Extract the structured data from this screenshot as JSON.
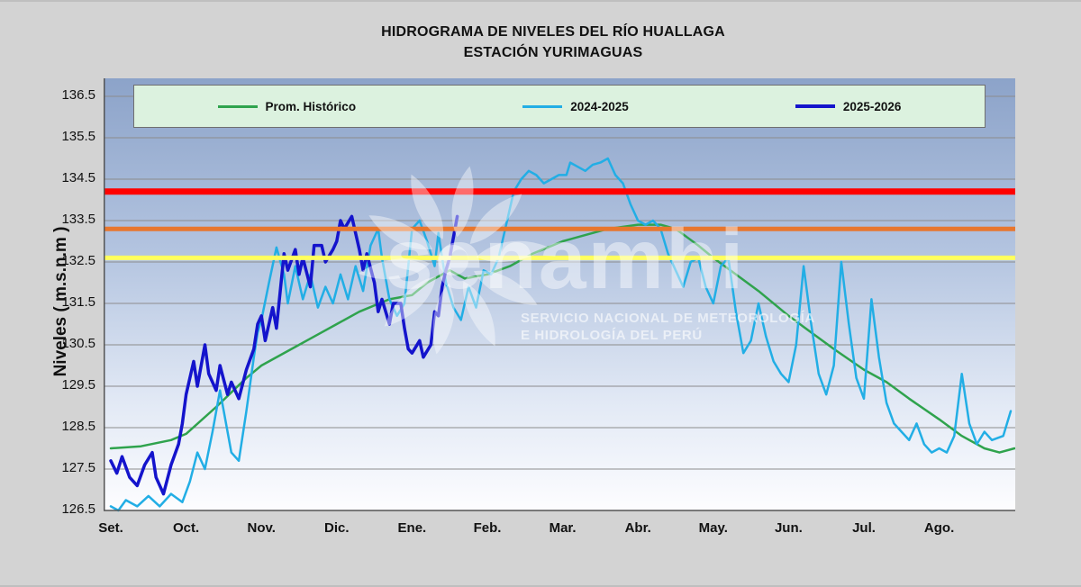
{
  "watermark": {
    "brand": "senamhi",
    "line1": "SERVICIO NACIONAL DE METEOROLOGÍA",
    "line2": "E HIDROLOGÍA DEL PERÚ"
  },
  "chart_data": {
    "type": "line",
    "title": "HIDROGRAMA DE NIVELES DEL RÍO HUALLAGA",
    "subtitle": "ESTACIÓN YURIMAGUAS",
    "xlabel": "",
    "ylabel": "Niveles ( m.s.n.m )",
    "ylim": [
      126.5,
      136.5
    ],
    "y_ticks": [
      126.5,
      127.5,
      128.5,
      129.5,
      130.5,
      131.5,
      132.5,
      133.5,
      134.5,
      135.5,
      136.5
    ],
    "x_labels": [
      "Set.",
      "Oct.",
      "Nov.",
      "Dic.",
      "Ene.",
      "Feb.",
      "Mar.",
      "Abr.",
      "May.",
      "Jun.",
      "Jul.",
      "Ago."
    ],
    "grid": "horizontal",
    "legend_position": "top",
    "background_gradient": [
      "#8CA3C9",
      "#B3C4E0",
      "#E2E9F5",
      "#FDFDFF"
    ],
    "reference_lines": [
      {
        "value": 134.2,
        "color": "#FE0000",
        "width": 7
      },
      {
        "value": 133.3,
        "color": "#E8762D",
        "width": 5
      },
      {
        "value": 132.6,
        "color": "#FFFF5E",
        "width": 5
      }
    ],
    "series": [
      {
        "name": "Prom. Histórico",
        "color": "#2FA34D",
        "width": 2.5,
        "x": [
          0,
          0.4,
          0.8,
          1.0,
          1.4,
          1.8,
          2.0,
          2.4,
          2.8,
          3.0,
          3.3,
          3.7,
          4.0,
          4.2,
          4.5,
          4.7,
          5.0,
          5.3,
          5.6,
          6.0,
          6.3,
          6.6,
          7.0,
          7.3,
          7.5,
          7.8,
          8.0,
          8.3,
          8.6,
          9.0,
          9.3,
          9.6,
          10.0,
          10.3,
          10.6,
          11.0,
          11.3,
          11.6,
          11.8,
          12.0
        ],
        "y": [
          128.0,
          128.05,
          128.2,
          128.35,
          129.0,
          129.7,
          130.0,
          130.4,
          130.8,
          131.0,
          131.3,
          131.6,
          131.7,
          132.0,
          132.3,
          132.1,
          132.2,
          132.4,
          132.7,
          133.0,
          133.15,
          133.3,
          133.4,
          133.4,
          133.3,
          132.9,
          132.6,
          132.2,
          131.8,
          131.2,
          130.8,
          130.4,
          129.9,
          129.6,
          129.2,
          128.7,
          128.3,
          128.0,
          127.9,
          128.0
        ]
      },
      {
        "name": "2024-2025",
        "color": "#22AEE5",
        "width": 2.5,
        "x": [
          0.0,
          0.1,
          0.2,
          0.35,
          0.5,
          0.65,
          0.8,
          0.95,
          1.05,
          1.15,
          1.25,
          1.35,
          1.45,
          1.5,
          1.6,
          1.7,
          1.8,
          1.9,
          1.95,
          2.0,
          2.1,
          2.2,
          2.3,
          2.35,
          2.45,
          2.55,
          2.65,
          2.75,
          2.85,
          2.95,
          3.05,
          3.15,
          3.25,
          3.35,
          3.45,
          3.55,
          3.6,
          3.7,
          3.8,
          3.9,
          4.0,
          4.1,
          4.2,
          4.3,
          4.35,
          4.45,
          4.55,
          4.65,
          4.75,
          4.85,
          4.95,
          5.05,
          5.15,
          5.25,
          5.35,
          5.45,
          5.55,
          5.65,
          5.75,
          5.85,
          5.95,
          6.05,
          6.1,
          6.2,
          6.3,
          6.4,
          6.5,
          6.6,
          6.7,
          6.8,
          6.9,
          7.0,
          7.1,
          7.2,
          7.3,
          7.4,
          7.5,
          7.6,
          7.7,
          7.8,
          7.9,
          8.0,
          8.1,
          8.2,
          8.3,
          8.4,
          8.5,
          8.6,
          8.7,
          8.8,
          8.9,
          9.0,
          9.1,
          9.2,
          9.3,
          9.4,
          9.5,
          9.6,
          9.7,
          9.8,
          9.9,
          10.0,
          10.1,
          10.2,
          10.3,
          10.4,
          10.5,
          10.6,
          10.7,
          10.8,
          10.9,
          11.0,
          11.1,
          11.2,
          11.3,
          11.4,
          11.5,
          11.6,
          11.7,
          11.85,
          11.95
        ],
        "y": [
          126.6,
          126.5,
          126.75,
          126.6,
          126.85,
          126.6,
          126.9,
          126.7,
          127.2,
          127.9,
          127.5,
          128.4,
          129.4,
          128.9,
          127.9,
          127.7,
          128.9,
          130.2,
          130.8,
          131.1,
          132.0,
          132.85,
          132.2,
          131.5,
          132.4,
          131.6,
          132.2,
          131.4,
          131.9,
          131.5,
          132.2,
          131.6,
          132.4,
          131.8,
          132.9,
          133.3,
          132.6,
          131.6,
          131.2,
          131.5,
          133.3,
          133.5,
          133.0,
          132.4,
          133.2,
          132.0,
          131.4,
          131.1,
          131.9,
          131.4,
          132.3,
          132.2,
          132.6,
          133.4,
          134.2,
          134.5,
          134.7,
          134.6,
          134.4,
          134.5,
          134.6,
          134.6,
          134.9,
          134.8,
          134.7,
          134.85,
          134.9,
          135.0,
          134.6,
          134.4,
          133.9,
          133.5,
          133.4,
          133.5,
          133.3,
          132.7,
          132.3,
          131.9,
          132.5,
          132.6,
          131.9,
          131.5,
          132.4,
          132.6,
          131.3,
          130.3,
          130.6,
          131.5,
          130.7,
          130.1,
          129.8,
          129.6,
          130.5,
          132.4,
          131.0,
          129.8,
          129.3,
          130.0,
          132.5,
          131.0,
          129.7,
          129.2,
          131.6,
          130.2,
          129.1,
          128.6,
          128.4,
          128.2,
          128.6,
          128.1,
          127.9,
          128.0,
          127.9,
          128.3,
          129.8,
          128.6,
          128.1,
          128.4,
          128.2,
          128.3,
          128.9
        ]
      },
      {
        "name": "2025-2026",
        "color": "#1414CC",
        "width": 3.5,
        "x": [
          0.0,
          0.08,
          0.15,
          0.25,
          0.35,
          0.45,
          0.55,
          0.6,
          0.7,
          0.8,
          0.9,
          0.95,
          1.0,
          1.1,
          1.15,
          1.25,
          1.3,
          1.4,
          1.45,
          1.55,
          1.6,
          1.7,
          1.8,
          1.9,
          1.95,
          2.0,
          2.05,
          2.15,
          2.2,
          2.3,
          2.35,
          2.45,
          2.5,
          2.55,
          2.65,
          2.7,
          2.8,
          2.85,
          2.95,
          3.0,
          3.05,
          3.1,
          3.2,
          3.3,
          3.35,
          3.4,
          3.5,
          3.55,
          3.6,
          3.7,
          3.75,
          3.85,
          3.9,
          3.95,
          4.0,
          4.1,
          4.15,
          4.25,
          4.3,
          4.35,
          4.4,
          4.45,
          4.5,
          4.55,
          4.6
        ],
        "y": [
          127.7,
          127.4,
          127.8,
          127.3,
          127.1,
          127.6,
          127.9,
          127.3,
          126.9,
          127.6,
          128.1,
          128.6,
          129.3,
          130.1,
          129.5,
          130.5,
          129.8,
          129.4,
          130.0,
          129.3,
          129.6,
          129.2,
          129.9,
          130.4,
          131.0,
          131.2,
          130.6,
          131.4,
          130.9,
          132.7,
          132.3,
          132.8,
          132.2,
          132.6,
          131.9,
          132.9,
          132.9,
          132.5,
          132.8,
          133.0,
          133.5,
          133.3,
          133.6,
          132.8,
          132.3,
          132.7,
          132.0,
          131.3,
          131.6,
          131.0,
          131.5,
          131.5,
          130.9,
          130.4,
          130.3,
          130.6,
          130.2,
          130.5,
          131.3,
          131.2,
          131.9,
          132.3,
          132.6,
          133.1,
          133.6
        ]
      }
    ]
  }
}
